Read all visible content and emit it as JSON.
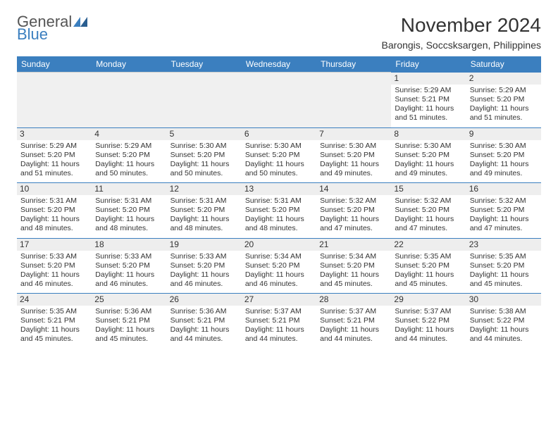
{
  "brand": {
    "part1": "General",
    "part2": "Blue"
  },
  "title": "November 2024",
  "location": "Barongis, Soccsksargen, Philippines",
  "colors": {
    "accent": "#3b7fbf",
    "header_text": "#ffffff",
    "day_bg": "#eeeeee",
    "empty_bg": "#f0f0f0",
    "text": "#333333",
    "background": "#ffffff"
  },
  "calendar": {
    "columns": [
      "Sunday",
      "Monday",
      "Tuesday",
      "Wednesday",
      "Thursday",
      "Friday",
      "Saturday"
    ],
    "first_weekday_index": 5,
    "days": [
      {
        "n": 1,
        "sr": "5:29 AM",
        "ss": "5:21 PM",
        "dl": "11 hours and 51 minutes."
      },
      {
        "n": 2,
        "sr": "5:29 AM",
        "ss": "5:20 PM",
        "dl": "11 hours and 51 minutes."
      },
      {
        "n": 3,
        "sr": "5:29 AM",
        "ss": "5:20 PM",
        "dl": "11 hours and 51 minutes."
      },
      {
        "n": 4,
        "sr": "5:29 AM",
        "ss": "5:20 PM",
        "dl": "11 hours and 50 minutes."
      },
      {
        "n": 5,
        "sr": "5:30 AM",
        "ss": "5:20 PM",
        "dl": "11 hours and 50 minutes."
      },
      {
        "n": 6,
        "sr": "5:30 AM",
        "ss": "5:20 PM",
        "dl": "11 hours and 50 minutes."
      },
      {
        "n": 7,
        "sr": "5:30 AM",
        "ss": "5:20 PM",
        "dl": "11 hours and 49 minutes."
      },
      {
        "n": 8,
        "sr": "5:30 AM",
        "ss": "5:20 PM",
        "dl": "11 hours and 49 minutes."
      },
      {
        "n": 9,
        "sr": "5:30 AM",
        "ss": "5:20 PM",
        "dl": "11 hours and 49 minutes."
      },
      {
        "n": 10,
        "sr": "5:31 AM",
        "ss": "5:20 PM",
        "dl": "11 hours and 48 minutes."
      },
      {
        "n": 11,
        "sr": "5:31 AM",
        "ss": "5:20 PM",
        "dl": "11 hours and 48 minutes."
      },
      {
        "n": 12,
        "sr": "5:31 AM",
        "ss": "5:20 PM",
        "dl": "11 hours and 48 minutes."
      },
      {
        "n": 13,
        "sr": "5:31 AM",
        "ss": "5:20 PM",
        "dl": "11 hours and 48 minutes."
      },
      {
        "n": 14,
        "sr": "5:32 AM",
        "ss": "5:20 PM",
        "dl": "11 hours and 47 minutes."
      },
      {
        "n": 15,
        "sr": "5:32 AM",
        "ss": "5:20 PM",
        "dl": "11 hours and 47 minutes."
      },
      {
        "n": 16,
        "sr": "5:32 AM",
        "ss": "5:20 PM",
        "dl": "11 hours and 47 minutes."
      },
      {
        "n": 17,
        "sr": "5:33 AM",
        "ss": "5:20 PM",
        "dl": "11 hours and 46 minutes."
      },
      {
        "n": 18,
        "sr": "5:33 AM",
        "ss": "5:20 PM",
        "dl": "11 hours and 46 minutes."
      },
      {
        "n": 19,
        "sr": "5:33 AM",
        "ss": "5:20 PM",
        "dl": "11 hours and 46 minutes."
      },
      {
        "n": 20,
        "sr": "5:34 AM",
        "ss": "5:20 PM",
        "dl": "11 hours and 46 minutes."
      },
      {
        "n": 21,
        "sr": "5:34 AM",
        "ss": "5:20 PM",
        "dl": "11 hours and 45 minutes."
      },
      {
        "n": 22,
        "sr": "5:35 AM",
        "ss": "5:20 PM",
        "dl": "11 hours and 45 minutes."
      },
      {
        "n": 23,
        "sr": "5:35 AM",
        "ss": "5:20 PM",
        "dl": "11 hours and 45 minutes."
      },
      {
        "n": 24,
        "sr": "5:35 AM",
        "ss": "5:21 PM",
        "dl": "11 hours and 45 minutes."
      },
      {
        "n": 25,
        "sr": "5:36 AM",
        "ss": "5:21 PM",
        "dl": "11 hours and 45 minutes."
      },
      {
        "n": 26,
        "sr": "5:36 AM",
        "ss": "5:21 PM",
        "dl": "11 hours and 44 minutes."
      },
      {
        "n": 27,
        "sr": "5:37 AM",
        "ss": "5:21 PM",
        "dl": "11 hours and 44 minutes."
      },
      {
        "n": 28,
        "sr": "5:37 AM",
        "ss": "5:21 PM",
        "dl": "11 hours and 44 minutes."
      },
      {
        "n": 29,
        "sr": "5:37 AM",
        "ss": "5:22 PM",
        "dl": "11 hours and 44 minutes."
      },
      {
        "n": 30,
        "sr": "5:38 AM",
        "ss": "5:22 PM",
        "dl": "11 hours and 44 minutes."
      }
    ],
    "labels": {
      "sunrise": "Sunrise:",
      "sunset": "Sunset:",
      "daylight": "Daylight:"
    }
  }
}
